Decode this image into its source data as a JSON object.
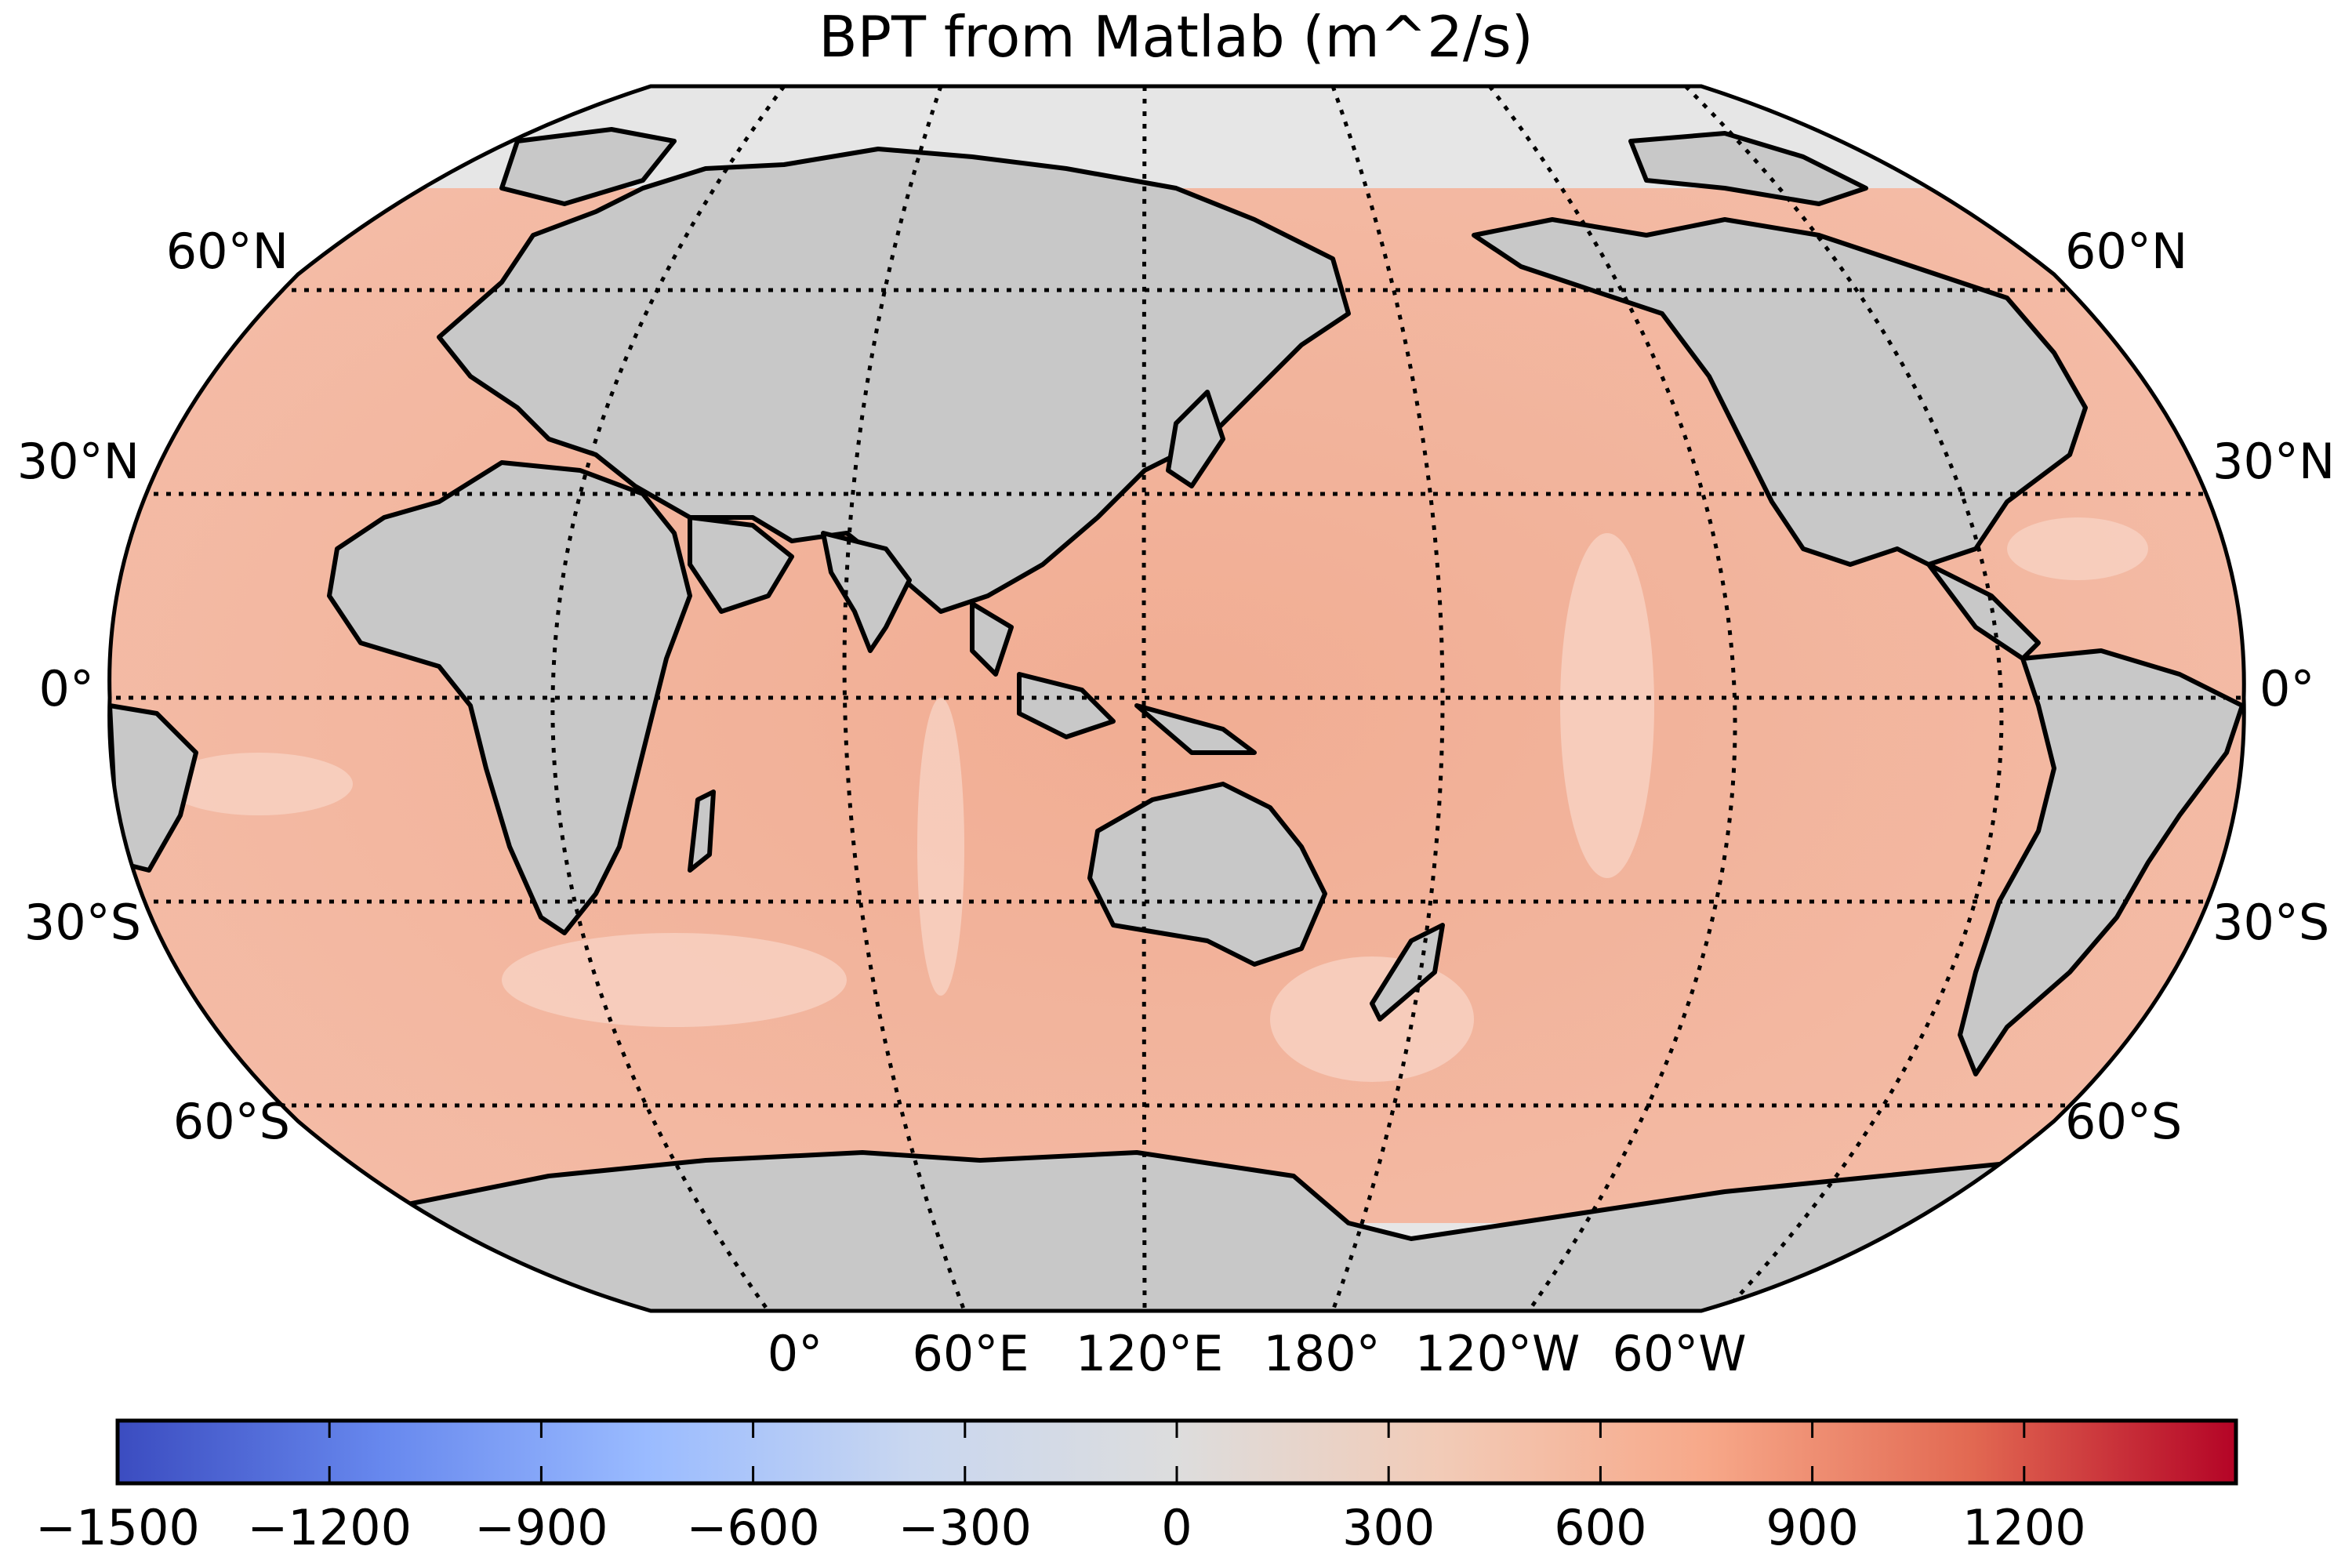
{
  "title": "BPT from Matlab (m^2/s)",
  "projection": "Robinson",
  "central_longitude_label": "120°E",
  "latitude_labels": [
    "60°N",
    "30°N",
    "0°",
    "30°S",
    "60°S"
  ],
  "longitude_labels": [
    "0°",
    "60°E",
    "120°E",
    "180°",
    "120°W",
    "60°W"
  ],
  "colorbar": {
    "colormap": "coolwarm",
    "colors": [
      "#3b4cc0",
      "#6788ee",
      "#9abbff",
      "#c9d7f0",
      "#dddddd",
      "#f2cbb7",
      "#f7a889",
      "#e26952",
      "#b40426"
    ],
    "min": -1500,
    "max": 1500,
    "ticks": [
      "−1500",
      "−1200",
      "−900",
      "−600",
      "−300",
      "0",
      "300",
      "600",
      "900",
      "1200"
    ],
    "tick_values": [
      -1500,
      -1200,
      -900,
      -600,
      -300,
      0,
      300,
      600,
      900,
      1200
    ]
  },
  "colors": {
    "ocean_field": "#f2b29a",
    "ocean_light": "#f6cdbd",
    "land": "#c8c8c8",
    "ice": "#e6e6e6",
    "coastline": "#000000"
  }
}
